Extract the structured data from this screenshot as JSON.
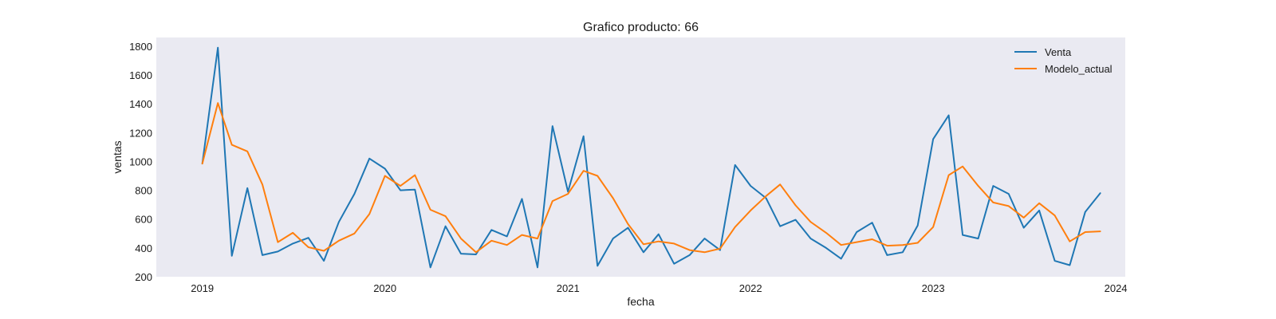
{
  "chart_data": {
    "type": "line",
    "title": "Grafico producto: 66",
    "xlabel": "fecha",
    "ylabel": "ventas",
    "ylim": [
      200,
      1860
    ],
    "xlim": [
      "2018-10-01",
      "2024-01-20"
    ],
    "yticks": [
      200,
      400,
      600,
      800,
      1000,
      1200,
      1400,
      1600,
      1800
    ],
    "xticks": [
      {
        "label": "2019",
        "date": "2019-01-01"
      },
      {
        "label": "2020",
        "date": "2020-01-01"
      },
      {
        "label": "2021",
        "date": "2021-01-01"
      },
      {
        "label": "2022",
        "date": "2022-01-01"
      },
      {
        "label": "2023",
        "date": "2023-01-01"
      },
      {
        "label": "2024",
        "date": "2024-01-01"
      }
    ],
    "grid": false,
    "legend_position": "top-right",
    "background": "#eaeaf2",
    "x": [
      "2019-01",
      "2019-02",
      "2019-03",
      "2019-04",
      "2019-05",
      "2019-06",
      "2019-07",
      "2019-08",
      "2019-09",
      "2019-10",
      "2019-11",
      "2019-12",
      "2020-01",
      "2020-02",
      "2020-03",
      "2020-04",
      "2020-05",
      "2020-06",
      "2020-07",
      "2020-08",
      "2020-09",
      "2020-10",
      "2020-11",
      "2020-12",
      "2021-01",
      "2021-02",
      "2021-03",
      "2021-04",
      "2021-05",
      "2021-06",
      "2021-07",
      "2021-08",
      "2021-09",
      "2021-10",
      "2021-11",
      "2021-12",
      "2022-01",
      "2022-02",
      "2022-03",
      "2022-04",
      "2022-05",
      "2022-06",
      "2022-07",
      "2022-08",
      "2022-09",
      "2022-10",
      "2022-11",
      "2022-12",
      "2023-01",
      "2023-02",
      "2023-03",
      "2023-04",
      "2023-05",
      "2023-06",
      "2023-07",
      "2023-08",
      "2023-09",
      "2023-10",
      "2023-11",
      "2023-12"
    ],
    "series": [
      {
        "name": "Venta",
        "color": "#1f77b4",
        "values": [
          985,
          1790,
          345,
          815,
          350,
          375,
          430,
          470,
          310,
          580,
          775,
          1020,
          950,
          800,
          805,
          265,
          550,
          360,
          355,
          525,
          480,
          740,
          265,
          1245,
          790,
          1175,
          275,
          465,
          540,
          370,
          495,
          290,
          350,
          465,
          385,
          975,
          830,
          745,
          550,
          595,
          465,
          400,
          325,
          510,
          575,
          350,
          370,
          555,
          1155,
          1320,
          490,
          465,
          830,
          775,
          540,
          660,
          310,
          280,
          650,
          780
        ]
      },
      {
        "name": "Modelo_actual",
        "color": "#ff7f0e",
        "values": [
          985,
          1405,
          1115,
          1070,
          840,
          440,
          505,
          405,
          380,
          450,
          500,
          635,
          900,
          830,
          905,
          665,
          620,
          465,
          370,
          450,
          420,
          490,
          465,
          725,
          775,
          935,
          900,
          745,
          565,
          425,
          445,
          430,
          385,
          370,
          395,
          545,
          660,
          760,
          840,
          695,
          580,
          505,
          420,
          440,
          460,
          415,
          420,
          435,
          545,
          905,
          965,
          830,
          715,
          690,
          610,
          710,
          625,
          445,
          510,
          515
        ]
      }
    ]
  }
}
